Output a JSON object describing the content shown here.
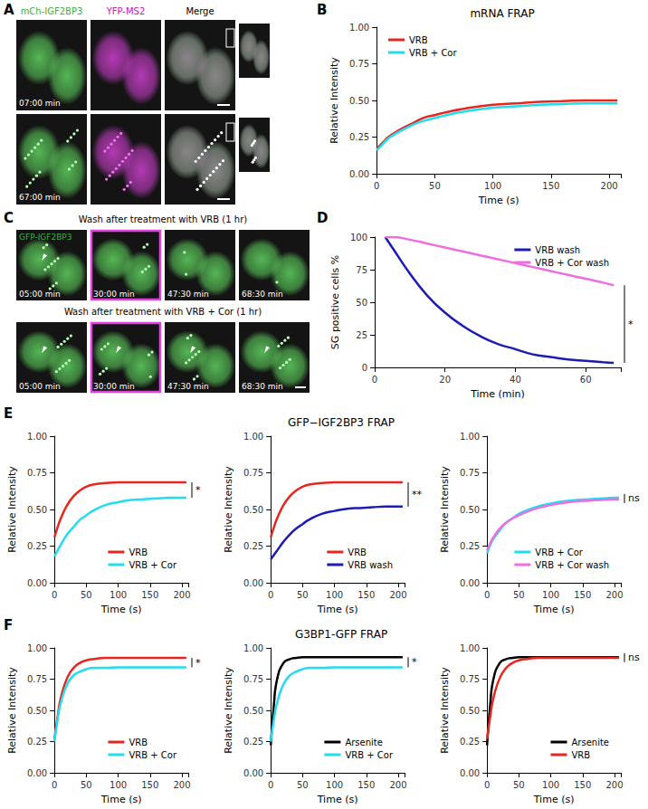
{
  "panel_letters": [
    "A",
    "B",
    "C",
    "D",
    "E",
    "F"
  ],
  "image_panels": {
    "A": {
      "columns": [
        {
          "text": "mCh-IGF2BP3",
          "color": "#3cb043"
        },
        {
          "text": "YFP-MS2",
          "color": "#c020c0"
        },
        {
          "text": "Merge",
          "color": "#000000"
        }
      ],
      "rows": [
        "07:00 min",
        "67:00 min"
      ]
    },
    "C": {
      "channel": {
        "text": "GFP-IGF2BP3",
        "color": "#3cb043"
      },
      "rows": [
        {
          "title": "Wash after treatment with VRB (1 hr)",
          "times": [
            "05:00 min",
            "30:00 min",
            "47:30 min",
            "68:30 min"
          ]
        },
        {
          "title": "Wash after treatment with VRB + Cor (1 hr)",
          "times": [
            "05:00 min",
            "30:00 min",
            "47:30 min",
            "68:30 min"
          ]
        }
      ]
    }
  },
  "chart_data": [
    {
      "type": "line",
      "title": "mRNA FRAP",
      "x_label": "Time (s)",
      "y_label": "Relative Intensity",
      "x": [
        0,
        5,
        10,
        20,
        30,
        40,
        50,
        60,
        80,
        100,
        120,
        140,
        160,
        180,
        200,
        207
      ],
      "series": [
        {
          "name": "VRB",
          "color": "#e8261e",
          "values": [
            0.17,
            0.21,
            0.25,
            0.3,
            0.34,
            0.38,
            0.4,
            0.42,
            0.45,
            0.47,
            0.48,
            0.49,
            0.495,
            0.5,
            0.5,
            0.5
          ]
        },
        {
          "name": "VRB + Cor",
          "color": "#22dcef",
          "values": [
            0.16,
            0.2,
            0.24,
            0.29,
            0.33,
            0.36,
            0.38,
            0.4,
            0.43,
            0.45,
            0.46,
            0.47,
            0.475,
            0.48,
            0.48,
            0.48
          ]
        }
      ],
      "xlim": [
        0,
        210
      ],
      "xticks": [
        0,
        50,
        100,
        150,
        200
      ],
      "ylim": [
        0,
        1
      ],
      "yticks": [
        {
          "value": 0,
          "label": "0.00"
        },
        {
          "value": 0.25,
          "label": "0.25"
        },
        {
          "value": 0.5,
          "label": "0.50"
        },
        {
          "value": 0.75,
          "label": "0.75"
        },
        {
          "value": 1,
          "label": "1.00"
        }
      ],
      "grid": false,
      "legend": "upper left"
    },
    {
      "type": "line",
      "x_label": "Time (min)",
      "y_label": "SG positive cells %",
      "x": [
        3,
        5,
        10,
        15,
        20,
        25,
        30,
        35,
        40,
        45,
        50,
        55,
        60,
        65,
        68
      ],
      "series": [
        {
          "name": "VRB wash",
          "color": "#1c1cb4",
          "values": [
            100,
            92,
            72,
            55,
            42,
            32,
            24,
            18,
            14,
            10,
            8,
            6,
            5,
            4,
            3.5
          ]
        },
        {
          "name": "VRB + Cor wash",
          "color": "#ee6ee0",
          "values": [
            100,
            100,
            98,
            95,
            92,
            89,
            86,
            83,
            80,
            77,
            74,
            71,
            68,
            65,
            63
          ]
        }
      ],
      "xlim": [
        0,
        70
      ],
      "xticks": [
        0,
        20,
        40,
        60
      ],
      "ylim": [
        0,
        100
      ],
      "yticks": [
        0,
        25,
        50,
        75,
        100
      ],
      "grid": false,
      "legend": "upper right",
      "annotations": [
        {
          "text": "*"
        }
      ]
    },
    {
      "type": "line",
      "x_label": "Time (s)",
      "y_label": "Relative Intensity",
      "x": [
        0,
        5,
        10,
        20,
        30,
        40,
        50,
        60,
        80,
        100,
        120,
        140,
        160,
        180,
        200,
        207
      ],
      "series": [
        {
          "name": "VRB",
          "color": "#e8261e",
          "values": [
            0.31,
            0.38,
            0.44,
            0.53,
            0.59,
            0.63,
            0.655,
            0.67,
            0.68,
            0.685,
            0.685,
            0.685,
            0.685,
            0.685,
            0.685,
            0.685
          ]
        },
        {
          "name": "VRB + Cor",
          "color": "#22dcef",
          "values": [
            0.18,
            0.22,
            0.26,
            0.33,
            0.38,
            0.43,
            0.46,
            0.49,
            0.53,
            0.55,
            0.565,
            0.57,
            0.575,
            0.58,
            0.58,
            0.58
          ]
        }
      ],
      "xlim": [
        0,
        210
      ],
      "xticks": [
        0,
        50,
        100,
        150,
        200
      ],
      "ylim": [
        0,
        1
      ],
      "yticks": [
        {
          "value": 0,
          "label": "0.00"
        },
        {
          "value": 0.25,
          "label": "0.25"
        },
        {
          "value": 0.5,
          "label": "0.50"
        },
        {
          "value": 0.75,
          "label": "0.75"
        },
        {
          "value": 1,
          "label": "1.00"
        }
      ],
      "grid": false,
      "legend": "lower right",
      "annotations": [
        {
          "text": "*"
        }
      ]
    },
    {
      "type": "line",
      "title": "GFP−IGF2BP3 FRAP",
      "x_label": "Time (s)",
      "y_label": "Relative Intensity",
      "x": [
        0,
        5,
        10,
        20,
        30,
        40,
        50,
        60,
        80,
        100,
        120,
        140,
        160,
        180,
        200,
        207
      ],
      "series": [
        {
          "name": "VRB",
          "color": "#e8261e",
          "values": [
            0.31,
            0.38,
            0.44,
            0.53,
            0.59,
            0.63,
            0.655,
            0.67,
            0.68,
            0.685,
            0.685,
            0.685,
            0.685,
            0.685,
            0.685,
            0.685
          ]
        },
        {
          "name": "VRB wash",
          "color": "#1c1cb4",
          "values": [
            0.16,
            0.19,
            0.22,
            0.28,
            0.33,
            0.37,
            0.4,
            0.43,
            0.47,
            0.49,
            0.505,
            0.51,
            0.515,
            0.52,
            0.52,
            0.52
          ]
        }
      ],
      "xlim": [
        0,
        210
      ],
      "xticks": [
        0,
        50,
        100,
        150,
        200
      ],
      "ylim": [
        0,
        1
      ],
      "yticks": [
        {
          "value": 0,
          "label": "0.00"
        },
        {
          "value": 0.25,
          "label": "0.25"
        },
        {
          "value": 0.5,
          "label": "0.50"
        },
        {
          "value": 0.75,
          "label": "0.75"
        },
        {
          "value": 1,
          "label": "1.00"
        }
      ],
      "grid": false,
      "legend": "lower right",
      "annotations": [
        {
          "text": "**"
        }
      ]
    },
    {
      "type": "line",
      "x_label": "Time (s)",
      "y_label": "Relative Intensity",
      "x": [
        0,
        5,
        10,
        20,
        30,
        40,
        50,
        60,
        80,
        100,
        120,
        140,
        160,
        180,
        200,
        207
      ],
      "series": [
        {
          "name": "VRB + Cor",
          "color": "#22dcef",
          "values": [
            0.2,
            0.26,
            0.3,
            0.36,
            0.41,
            0.44,
            0.47,
            0.49,
            0.52,
            0.54,
            0.555,
            0.565,
            0.57,
            0.575,
            0.58,
            0.58
          ]
        },
        {
          "name": "VRB + Cor wash",
          "color": "#ee6ee0",
          "values": [
            0.22,
            0.27,
            0.31,
            0.37,
            0.41,
            0.44,
            0.46,
            0.48,
            0.51,
            0.53,
            0.545,
            0.555,
            0.56,
            0.565,
            0.57,
            0.57
          ]
        }
      ],
      "xlim": [
        0,
        210
      ],
      "xticks": [
        0,
        50,
        100,
        150,
        200
      ],
      "ylim": [
        0,
        1
      ],
      "yticks": [
        {
          "value": 0,
          "label": "0.00"
        },
        {
          "value": 0.25,
          "label": "0.25"
        },
        {
          "value": 0.5,
          "label": "0.50"
        },
        {
          "value": 0.75,
          "label": "0.75"
        },
        {
          "value": 1,
          "label": "1.00"
        }
      ],
      "grid": false,
      "legend": "lower right",
      "annotations": [
        {
          "text": "ns"
        }
      ]
    },
    {
      "type": "line",
      "x_label": "Time (s)",
      "y_label": "Relative Intensity",
      "x": [
        0,
        5,
        10,
        20,
        30,
        40,
        50,
        60,
        80,
        100,
        120,
        140,
        160,
        180,
        200,
        207
      ],
      "series": [
        {
          "name": "VRB",
          "color": "#e8261e",
          "values": [
            0.27,
            0.45,
            0.6,
            0.76,
            0.84,
            0.88,
            0.9,
            0.91,
            0.92,
            0.92,
            0.92,
            0.92,
            0.92,
            0.92,
            0.92,
            0.92
          ]
        },
        {
          "name": "VRB + Cor",
          "color": "#22dcef",
          "values": [
            0.25,
            0.43,
            0.56,
            0.71,
            0.78,
            0.81,
            0.83,
            0.84,
            0.84,
            0.845,
            0.845,
            0.845,
            0.845,
            0.845,
            0.845,
            0.845
          ]
        }
      ],
      "xlim": [
        0,
        210
      ],
      "xticks": [
        0,
        50,
        100,
        150,
        200
      ],
      "ylim": [
        0,
        1
      ],
      "yticks": [
        {
          "value": 0,
          "label": "0.00"
        },
        {
          "value": 0.25,
          "label": "0.25"
        },
        {
          "value": 0.5,
          "label": "0.50"
        },
        {
          "value": 0.75,
          "label": "0.75"
        },
        {
          "value": 1,
          "label": "1.00"
        }
      ],
      "grid": false,
      "legend": "lower right",
      "annotations": [
        {
          "text": "*"
        }
      ]
    },
    {
      "type": "line",
      "title": "G3BP1-GFP FRAP",
      "x_label": "Time (s)",
      "y_label": "Relative Intensity",
      "x": [
        0,
        5,
        10,
        20,
        30,
        40,
        50,
        60,
        80,
        100,
        120,
        140,
        160,
        180,
        200,
        207
      ],
      "series": [
        {
          "name": "Arsenite",
          "color": "#000000",
          "values": [
            0.22,
            0.55,
            0.75,
            0.88,
            0.91,
            0.92,
            0.925,
            0.925,
            0.925,
            0.925,
            0.925,
            0.925,
            0.925,
            0.925,
            0.925,
            0.925
          ]
        },
        {
          "name": "VRB + Cor",
          "color": "#22dcef",
          "values": [
            0.25,
            0.43,
            0.56,
            0.71,
            0.78,
            0.81,
            0.83,
            0.84,
            0.84,
            0.845,
            0.845,
            0.845,
            0.845,
            0.845,
            0.845,
            0.845
          ]
        }
      ],
      "xlim": [
        0,
        210
      ],
      "xticks": [
        0,
        50,
        100,
        150,
        200
      ],
      "ylim": [
        0,
        1
      ],
      "yticks": [
        {
          "value": 0,
          "label": "0.00"
        },
        {
          "value": 0.25,
          "label": "0.25"
        },
        {
          "value": 0.5,
          "label": "0.50"
        },
        {
          "value": 0.75,
          "label": "0.75"
        },
        {
          "value": 1,
          "label": "1.00"
        }
      ],
      "grid": false,
      "legend": "lower right",
      "annotations": [
        {
          "text": "*"
        }
      ]
    },
    {
      "type": "line",
      "x_label": "Time (s)",
      "y_label": "Relative Intensity",
      "x": [
        0,
        5,
        10,
        20,
        30,
        40,
        50,
        60,
        80,
        100,
        120,
        140,
        160,
        180,
        200,
        207
      ],
      "series": [
        {
          "name": "Arsenite",
          "color": "#000000",
          "values": [
            0.22,
            0.55,
            0.75,
            0.88,
            0.91,
            0.92,
            0.925,
            0.925,
            0.925,
            0.925,
            0.925,
            0.925,
            0.925,
            0.925,
            0.925,
            0.925
          ]
        },
        {
          "name": "VRB",
          "color": "#e8261e",
          "values": [
            0.27,
            0.45,
            0.6,
            0.76,
            0.84,
            0.88,
            0.9,
            0.91,
            0.92,
            0.92,
            0.92,
            0.92,
            0.92,
            0.92,
            0.92,
            0.92
          ]
        }
      ],
      "xlim": [
        0,
        210
      ],
      "xticks": [
        0,
        50,
        100,
        150,
        200
      ],
      "ylim": [
        0,
        1
      ],
      "yticks": [
        {
          "value": 0,
          "label": "0.00"
        },
        {
          "value": 0.25,
          "label": "0.25"
        },
        {
          "value": 0.5,
          "label": "0.50"
        },
        {
          "value": 0.75,
          "label": "0.75"
        },
        {
          "value": 1,
          "label": "1.00"
        }
      ],
      "grid": false,
      "legend": "lower right",
      "annotations": [
        {
          "text": "ns"
        }
      ]
    }
  ]
}
